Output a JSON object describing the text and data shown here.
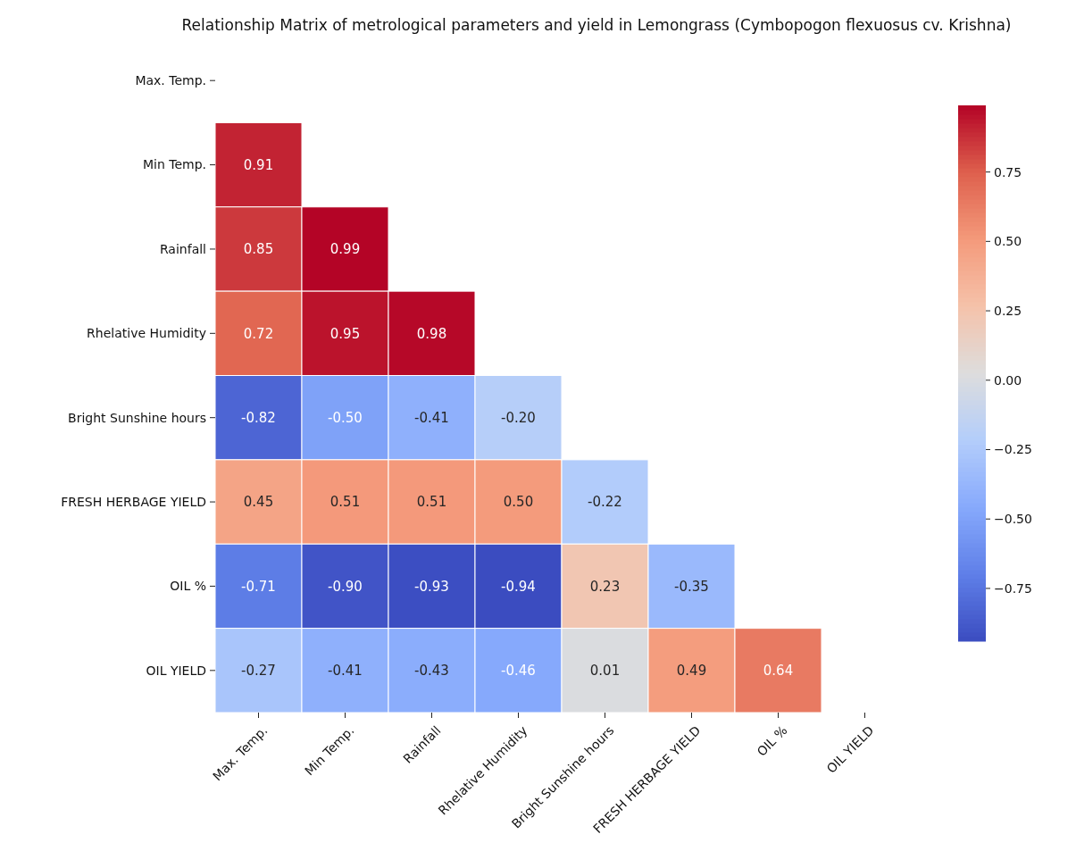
{
  "chart_data": {
    "type": "heatmap",
    "title": "Relationship Matrix of metrological parameters and yield in Lemongrass (Cymbopogon flexuosus cv. Krishna)",
    "categories": [
      "Max. Temp.",
      "Min Temp.",
      "Rainfall",
      "Rhelative Humidity",
      "Bright Sunshine hours",
      "FRESH HERBAGE YIELD",
      "OIL %",
      "OIL YIELD"
    ],
    "y_categories": [
      "Max. Temp.",
      "Min Temp.",
      "Rainfall",
      "Rhelative Humidity",
      "Bright Sunshine hours",
      "FRESH HERBAGE YIELD",
      "OIL %",
      "OIL YIELD"
    ],
    "cells": [
      [
        null,
        null,
        null,
        null,
        null,
        null,
        null,
        null
      ],
      [
        0.91,
        null,
        null,
        null,
        null,
        null,
        null,
        null
      ],
      [
        0.85,
        0.99,
        null,
        null,
        null,
        null,
        null,
        null
      ],
      [
        0.72,
        0.95,
        0.98,
        null,
        null,
        null,
        null,
        null
      ],
      [
        -0.82,
        -0.5,
        -0.41,
        -0.2,
        null,
        null,
        null,
        null
      ],
      [
        0.45,
        0.51,
        0.51,
        0.5,
        -0.22,
        null,
        null,
        null
      ],
      [
        -0.71,
        -0.9,
        -0.93,
        -0.94,
        0.23,
        -0.35,
        null,
        null
      ],
      [
        -0.27,
        -0.41,
        -0.43,
        -0.46,
        0.01,
        0.49,
        0.64,
        null
      ]
    ],
    "cell_labels": [
      [
        null,
        null,
        null,
        null,
        null,
        null,
        null,
        null
      ],
      [
        "0.91",
        null,
        null,
        null,
        null,
        null,
        null,
        null
      ],
      [
        "0.85",
        "0.99",
        null,
        null,
        null,
        null,
        null,
        null
      ],
      [
        "0.72",
        "0.95",
        "0.98",
        null,
        null,
        null,
        null,
        null
      ],
      [
        "-0.82",
        "-0.50",
        "-0.41",
        "-0.20",
        null,
        null,
        null,
        null
      ],
      [
        "0.45",
        "0.51",
        "0.51",
        "0.50",
        "-0.22",
        null,
        null,
        null
      ],
      [
        "-0.71",
        "-0.90",
        "-0.93",
        "-0.94",
        "0.23",
        "-0.35",
        null,
        null
      ],
      [
        "-0.27",
        "-0.41",
        "-0.43",
        "-0.46",
        "0.01",
        "0.49",
        "0.64",
        null
      ]
    ],
    "clim": [
      -0.94,
      0.99
    ],
    "cticks": [
      {
        "value": -0.75,
        "label": "−0.75"
      },
      {
        "value": -0.5,
        "label": "−0.50"
      },
      {
        "value": -0.25,
        "label": "−0.25"
      },
      {
        "value": 0,
        "label": "0.00"
      },
      {
        "value": 0.25,
        "label": "0.25"
      },
      {
        "value": 0.5,
        "label": "0.50"
      },
      {
        "value": 0.75,
        "label": "0.75"
      }
    ]
  }
}
